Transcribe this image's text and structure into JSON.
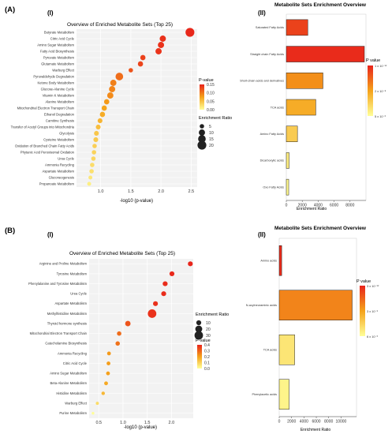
{
  "panels": {
    "A": "(A)",
    "B": "(B)",
    "sub_i": "(I)",
    "sub_ii": "(II)"
  },
  "colors": {
    "low": "#ffff99",
    "mid": "#f5a31a",
    "high": "#e8231b",
    "panel_bg": "#f2f2f2",
    "grid": "#ffffff",
    "bar_outline": "#222222"
  },
  "chart_data": [
    {
      "id": "A-I",
      "type": "scatter",
      "title": "Overview of Enriched Metabolite Sets (Top 25)",
      "xlabel": "-log10 (p-value)",
      "xlim": [
        0.6,
        2.6
      ],
      "xticks": [
        1.0,
        1.5,
        2.0,
        2.5
      ],
      "xtick_labels": [
        "1.0",
        "1.5",
        "2.0",
        "2.5"
      ],
      "legend_color_title": "P-value",
      "legend_color_ticks": [
        "0.15",
        "0.10",
        "0.05",
        "0.00"
      ],
      "pmax": 0.17,
      "legend_size_title": "Enrichment Ratio",
      "legend_size_ticks": [
        5,
        10,
        15,
        20
      ],
      "size_ticks_labels": [
        "5",
        "10",
        "15",
        "20"
      ],
      "points": [
        {
          "label": "Butyrate Metabolism",
          "x": 2.48,
          "p": 0.003,
          "ratio": 20
        },
        {
          "label": "Citric Acid Cycle",
          "x": 2.03,
          "p": 0.009,
          "ratio": 10
        },
        {
          "label": "Amino Sugar Metabolism",
          "x": 2.0,
          "p": 0.01,
          "ratio": 10
        },
        {
          "label": "Fatty Acid Biosynthesis",
          "x": 1.96,
          "p": 0.011,
          "ratio": 10
        },
        {
          "label": "Pyruvate Metabolism",
          "x": 1.7,
          "p": 0.02,
          "ratio": 7
        },
        {
          "label": "Glutamate Metabolism",
          "x": 1.66,
          "p": 0.022,
          "ratio": 7
        },
        {
          "label": "Warburg Effect",
          "x": 1.5,
          "p": 0.032,
          "ratio": 5
        },
        {
          "label": "Pyruvaldehyde Degradation",
          "x": 1.31,
          "p": 0.049,
          "ratio": 15
        },
        {
          "label": "Ketone Body Metabolism",
          "x": 1.21,
          "p": 0.062,
          "ratio": 10
        },
        {
          "label": "Glucose-Alanine Cycle",
          "x": 1.19,
          "p": 0.065,
          "ratio": 10
        },
        {
          "label": "Vitamin K Metabolism",
          "x": 1.16,
          "p": 0.069,
          "ratio": 10
        },
        {
          "label": "Alanine Metabolism",
          "x": 1.1,
          "p": 0.079,
          "ratio": 7
        },
        {
          "label": "Mitochondrial Electron Transport Chain",
          "x": 1.06,
          "p": 0.087,
          "ratio": 7
        },
        {
          "label": "Ethanol Degradation",
          "x": 1.03,
          "p": 0.093,
          "ratio": 7
        },
        {
          "label": "Carnitine Synthesis",
          "x": 0.99,
          "p": 0.102,
          "ratio": 6
        },
        {
          "label": "Transfer of Acetyl Groups into Mitochondria",
          "x": 0.96,
          "p": 0.11,
          "ratio": 6
        },
        {
          "label": "Glycolysis",
          "x": 0.93,
          "p": 0.117,
          "ratio": 6
        },
        {
          "label": "Cysteine Metabolism",
          "x": 0.92,
          "p": 0.12,
          "ratio": 6
        },
        {
          "label": "Oxidation of Branched Chain Fatty Acids",
          "x": 0.9,
          "p": 0.126,
          "ratio": 5
        },
        {
          "label": "Phytanic Acid Peroxisomal Oxidation",
          "x": 0.89,
          "p": 0.129,
          "ratio": 5
        },
        {
          "label": "Urea Cycle",
          "x": 0.88,
          "p": 0.132,
          "ratio": 5
        },
        {
          "label": "Ammonia Recycling",
          "x": 0.86,
          "p": 0.138,
          "ratio": 5
        },
        {
          "label": "Aspartate Metabolism",
          "x": 0.85,
          "p": 0.141,
          "ratio": 5
        },
        {
          "label": "Gluconeogenesis",
          "x": 0.83,
          "p": 0.148,
          "ratio": 4
        },
        {
          "label": "Propanoate Metabolism",
          "x": 0.81,
          "p": 0.155,
          "ratio": 4
        }
      ]
    },
    {
      "id": "A-II",
      "type": "bar",
      "orientation": "horizontal",
      "title": "Metabolite Sets Enrichment Overview",
      "xlabel": "Enrichment Ratio",
      "xlim": [
        0,
        10000
      ],
      "xticks": [
        0,
        2000,
        4000,
        6000,
        8000
      ],
      "xtick_labels": [
        "0",
        "2000",
        "4000",
        "6000",
        "8000"
      ],
      "legend_title": "P value",
      "legend_ticks": [
        "1 x 10⁻¹²",
        "2 x 10⁻⁸",
        "5 x 10⁻³"
      ],
      "bars": [
        {
          "label": "Saturated Fatty Acids",
          "value": 2700,
          "c": 0.88
        },
        {
          "label": "Straight chain Fatty Acids",
          "value": 9800,
          "c": 0.97
        },
        {
          "label": "Short-chain acids and derivatives",
          "value": 4600,
          "c": 0.58
        },
        {
          "label": "TCA acids",
          "value": 3700,
          "c": 0.45
        },
        {
          "label": "Amino Fatty Acids",
          "value": 1400,
          "c": 0.28
        },
        {
          "label": "Dicarboxylic acids",
          "value": 350,
          "c": 0.1
        },
        {
          "label": "Oxo Fatty Acids",
          "value": 300,
          "c": 0.04
        }
      ]
    },
    {
      "id": "B-I",
      "type": "scatter",
      "title": "Overview of Enriched Metabolite Sets (Top 25)",
      "xlabel": "-log10 (p-value)",
      "xlim": [
        0.3,
        2.45
      ],
      "xticks": [
        0.5,
        1.0,
        1.5,
        2.0
      ],
      "xtick_labels": [
        "0.5",
        "1.0",
        "1.5",
        "2.0"
      ],
      "legend_color_title": "P-value",
      "legend_color_ticks": [
        "0.4",
        "0.3",
        "0.2",
        "0.1",
        "0.0"
      ],
      "pmax": 0.42,
      "legend_size_title": "Enrichment Ratio",
      "legend_size_ticks": [
        10,
        20,
        30
      ],
      "size_ticks_labels": [
        "10",
        "20",
        "30"
      ],
      "points": [
        {
          "label": "Arginine and Proline Metabolism",
          "x": 2.39,
          "p": 0.004,
          "ratio": 10
        },
        {
          "label": "Tyrosine Metabolism",
          "x": 2.01,
          "p": 0.01,
          "ratio": 10
        },
        {
          "label": "Phenylalanine and Tyrosine Metabolism",
          "x": 1.87,
          "p": 0.014,
          "ratio": 10
        },
        {
          "label": "Urea Cycle",
          "x": 1.84,
          "p": 0.015,
          "ratio": 10
        },
        {
          "label": "Aspartate Metabolism",
          "x": 1.67,
          "p": 0.021,
          "ratio": 10
        },
        {
          "label": "Methylhistidine Metabolism",
          "x": 1.6,
          "p": 0.025,
          "ratio": 30
        },
        {
          "label": "Thyroid hormone synthesis",
          "x": 1.1,
          "p": 0.08,
          "ratio": 12
        },
        {
          "label": "Mitochondrial Electron Transport Chain",
          "x": 0.92,
          "p": 0.12,
          "ratio": 8
        },
        {
          "label": "Catecholamine Biosynthesis",
          "x": 0.89,
          "p": 0.13,
          "ratio": 8
        },
        {
          "label": "Ammonia Recycling",
          "x": 0.71,
          "p": 0.195,
          "ratio": 6
        },
        {
          "label": "Citric Acid Cycle",
          "x": 0.7,
          "p": 0.2,
          "ratio": 6
        },
        {
          "label": "Amino Sugar Metabolism",
          "x": 0.69,
          "p": 0.205,
          "ratio": 6
        },
        {
          "label": "Beta-Alanine Metabolism",
          "x": 0.65,
          "p": 0.224,
          "ratio": 6
        },
        {
          "label": "Histidine Metabolism",
          "x": 0.59,
          "p": 0.257,
          "ratio": 5
        },
        {
          "label": "Warburg Effect",
          "x": 0.47,
          "p": 0.339,
          "ratio": 4
        },
        {
          "label": "Purine Metabolism",
          "x": 0.38,
          "p": 0.417,
          "ratio": 3
        }
      ]
    },
    {
      "id": "B-II",
      "type": "bar",
      "orientation": "horizontal",
      "title": "Metabolite Sets Enrichment Overview",
      "xlabel": "Enrichment Ratio",
      "xlim": [
        0,
        12500
      ],
      "xticks": [
        0,
        2000,
        4000,
        6000,
        8000,
        10000
      ],
      "xtick_labels": [
        "0",
        "2000",
        "4000",
        "6000",
        "8000",
        "10000"
      ],
      "legend_title": "P value",
      "legend_ticks": [
        "3 x 10⁻¹²",
        "3 x 10⁻⁶",
        "6 x 10⁻³"
      ],
      "bars": [
        {
          "label": "Amino acids",
          "value": 400,
          "c": 0.97
        },
        {
          "label": "N-acylneuraminic acids",
          "value": 11800,
          "c": 0.62
        },
        {
          "label": "TCA acids",
          "value": 2500,
          "c": 0.14
        },
        {
          "label": "Phenylacetic acids",
          "value": 1600,
          "c": 0.06
        }
      ]
    }
  ]
}
